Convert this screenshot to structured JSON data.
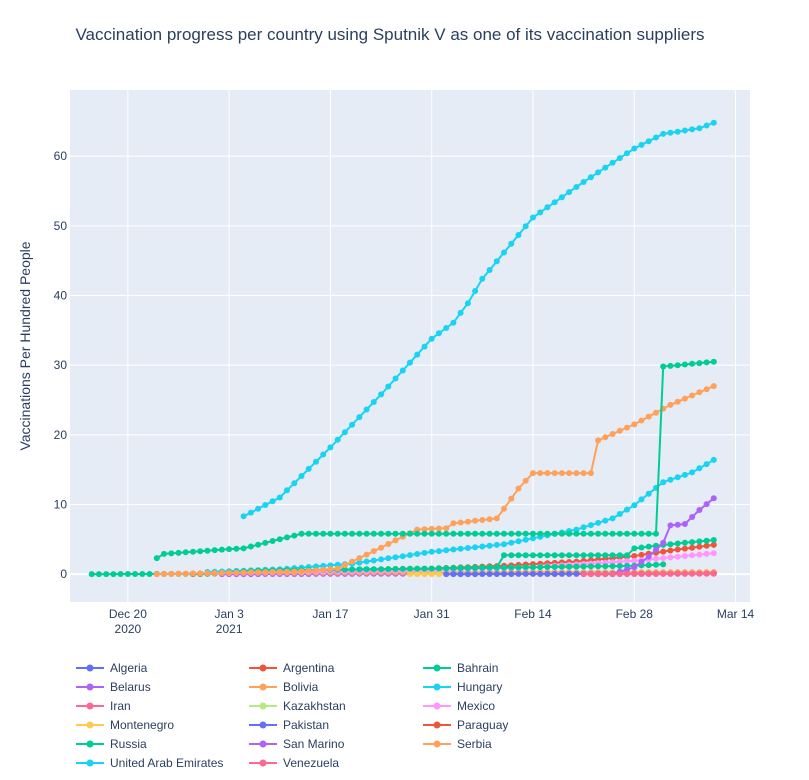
{
  "chart_data": {
    "type": "line",
    "title": "Vaccination progress per country using Sputnik V as one of its vaccination suppliers",
    "xlabel": "",
    "ylabel": "Vaccinations Per Hundred People",
    "x_axis": {
      "type": "date",
      "range": [
        "2020-12-12",
        "2021-03-16"
      ],
      "ticks": [
        {
          "date": "2020-12-20",
          "label": "Dec 20",
          "sublabel": "2020"
        },
        {
          "date": "2021-01-03",
          "label": "Jan 3",
          "sublabel": "2021"
        },
        {
          "date": "2021-01-17",
          "label": "Jan 17",
          "sublabel": ""
        },
        {
          "date": "2021-01-31",
          "label": "Jan 31",
          "sublabel": ""
        },
        {
          "date": "2021-02-14",
          "label": "Feb 14",
          "sublabel": ""
        },
        {
          "date": "2021-02-28",
          "label": "Feb 28",
          "sublabel": ""
        },
        {
          "date": "2021-03-14",
          "label": "Mar 14",
          "sublabel": ""
        }
      ]
    },
    "y_axis": {
      "range": [
        -4,
        69.5
      ],
      "ticks": [
        0,
        10,
        20,
        30,
        40,
        50,
        60
      ]
    },
    "grid": true,
    "legend_position": "bottom",
    "plot_background": "#e5ecf6",
    "series": [
      {
        "name": "Algeria",
        "color": "#636efa",
        "start": "2021-02-01",
        "end": "2021-02-16",
        "step": 1,
        "points": [
          [
            "2021-02-01",
            0.05
          ],
          [
            "2021-02-16",
            0.1
          ]
        ]
      },
      {
        "name": "Argentina",
        "color": "#EF553B",
        "start": "2020-12-29",
        "end": "2021-03-11",
        "step": 1,
        "points": [
          [
            "2020-12-29",
            0.0
          ],
          [
            "2021-01-10",
            0.3
          ],
          [
            "2021-01-31",
            0.8
          ],
          [
            "2021-02-10",
            1.2
          ],
          [
            "2021-02-20",
            1.8
          ],
          [
            "2021-02-28",
            2.6
          ],
          [
            "2021-03-05",
            3.4
          ],
          [
            "2021-03-11",
            4.2
          ]
        ]
      },
      {
        "name": "Bahrain",
        "color": "#00cc96",
        "start": "2021-01-07",
        "end": "2021-03-11",
        "step": 1,
        "points": [
          [
            "2021-01-07",
            0.5
          ],
          [
            "2021-01-31",
            0.8
          ],
          [
            "2021-02-09",
            1.0
          ],
          [
            "2021-02-10",
            2.7
          ],
          [
            "2021-02-27",
            2.7
          ],
          [
            "2021-02-28",
            3.7
          ],
          [
            "2021-03-04",
            4.2
          ],
          [
            "2021-03-11",
            4.9
          ]
        ]
      },
      {
        "name": "Belarus",
        "color": "#ab63fa",
        "start": "2021-01-02",
        "end": "2021-02-16",
        "step": 1,
        "points": [
          [
            "2021-01-02",
            0.0
          ],
          [
            "2021-02-16",
            0.1
          ]
        ]
      },
      {
        "name": "Bolivia",
        "color": "#FFA15A",
        "start": "2021-01-05",
        "end": "2021-03-11",
        "step": 1,
        "points": [
          [
            "2021-01-05",
            0.2
          ],
          [
            "2021-03-11",
            0.3
          ]
        ]
      },
      {
        "name": "Hungary",
        "color": "#19d3f3",
        "start": "2020-12-31",
        "end": "2021-03-11",
        "step": 1,
        "points": [
          [
            "2020-12-31",
            0.3
          ],
          [
            "2021-01-10",
            0.7
          ],
          [
            "2021-01-20",
            1.5
          ],
          [
            "2021-01-31",
            3.2
          ],
          [
            "2021-02-10",
            4.3
          ],
          [
            "2021-02-20",
            6.4
          ],
          [
            "2021-02-25",
            8.0
          ],
          [
            "2021-02-28",
            9.9
          ],
          [
            "2021-03-04",
            13.2
          ],
          [
            "2021-03-08",
            14.6
          ],
          [
            "2021-03-11",
            16.4
          ]
        ]
      },
      {
        "name": "Iran",
        "color": "#FF6692",
        "start": "2021-02-15",
        "end": "2021-03-11",
        "step": 1,
        "points": [
          [
            "2021-02-15",
            0.0
          ],
          [
            "2021-03-11",
            0.1
          ]
        ]
      },
      {
        "name": "Kazakhstan",
        "color": "#B6E880",
        "start": "2021-02-01",
        "end": "2021-03-11",
        "step": 1,
        "points": [
          [
            "2021-02-01",
            0.0
          ],
          [
            "2021-03-11",
            0.1
          ]
        ]
      },
      {
        "name": "Mexico",
        "color": "#FF97FF",
        "start": "2020-12-24",
        "end": "2021-03-11",
        "step": 1,
        "points": [
          [
            "2020-12-24",
            0.0
          ],
          [
            "2021-01-17",
            0.4
          ],
          [
            "2021-01-31",
            0.6
          ],
          [
            "2021-02-14",
            1.0
          ],
          [
            "2021-02-28",
            1.9
          ],
          [
            "2021-03-11",
            3.0
          ]
        ]
      },
      {
        "name": "Montenegro",
        "color": "#FECB52",
        "start": "2021-01-28",
        "end": "2021-03-11",
        "step": 1,
        "points": [
          [
            "2021-01-28",
            0.0
          ],
          [
            "2021-03-11",
            0.2
          ]
        ]
      },
      {
        "name": "Pakistan",
        "color": "#636efa",
        "start": "2021-02-02",
        "end": "2021-03-11",
        "step": 1,
        "points": [
          [
            "2021-02-02",
            0.0
          ],
          [
            "2021-03-11",
            0.1
          ]
        ]
      },
      {
        "name": "Paraguay",
        "color": "#EF553B",
        "start": "2021-02-22",
        "end": "2021-03-11",
        "step": 1,
        "points": [
          [
            "2021-02-22",
            0.0
          ],
          [
            "2021-03-11",
            0.1
          ]
        ]
      },
      {
        "name": "Russia",
        "color": "#00cc96",
        "start": "2020-12-15",
        "end": "2021-03-04",
        "step": 1,
        "points": [
          [
            "2020-12-15",
            0.0
          ],
          [
            "2020-12-31",
            0.05
          ],
          [
            "2021-01-07",
            0.5
          ],
          [
            "2021-01-31",
            0.8
          ],
          [
            "2021-02-28",
            1.2
          ],
          [
            "2021-03-04",
            1.4
          ]
        ]
      },
      {
        "name": "San Marino",
        "color": "#ab63fa",
        "start": "2021-02-25",
        "end": "2021-03-11",
        "step": 1,
        "points": [
          [
            "2021-02-25",
            0.0
          ],
          [
            "2021-02-28",
            1.0
          ],
          [
            "2021-03-02",
            2.5
          ],
          [
            "2021-03-04",
            4.5
          ],
          [
            "2021-03-05",
            7.0
          ],
          [
            "2021-03-07",
            7.2
          ],
          [
            "2021-03-09",
            9.2
          ],
          [
            "2021-03-11",
            10.9
          ]
        ]
      },
      {
        "name": "Serbia",
        "color": "#FFA15A",
        "start": "2020-12-24",
        "end": "2021-03-11",
        "step": 1,
        "points": [
          [
            "2020-12-24",
            0.0
          ],
          [
            "2021-01-13",
            0.4
          ],
          [
            "2021-01-18",
            0.8
          ],
          [
            "2021-01-24",
            3.8
          ],
          [
            "2021-01-29",
            6.4
          ],
          [
            "2021-02-02",
            6.6
          ],
          [
            "2021-02-03",
            7.3
          ],
          [
            "2021-02-09",
            8.0
          ],
          [
            "2021-02-10",
            9.4
          ],
          [
            "2021-02-12",
            12.3
          ],
          [
            "2021-02-14",
            14.5
          ],
          [
            "2021-02-22",
            14.5
          ],
          [
            "2021-02-23",
            19.2
          ],
          [
            "2021-02-28",
            21.5
          ],
          [
            "2021-03-05",
            24.3
          ],
          [
            "2021-03-11",
            27.0
          ]
        ]
      },
      {
        "name": "United Arab Emirates",
        "color": "#19d3f3",
        "start": "2021-01-05",
        "end": "2021-03-11",
        "step": 1,
        "points": [
          [
            "2021-01-05",
            8.3
          ],
          [
            "2021-01-10",
            11.0
          ],
          [
            "2021-01-17",
            18.2
          ],
          [
            "2021-01-24",
            25.8
          ],
          [
            "2021-01-31",
            33.8
          ],
          [
            "2021-02-03",
            36.1
          ],
          [
            "2021-02-05",
            38.9
          ],
          [
            "2021-02-07",
            42.4
          ],
          [
            "2021-02-14",
            51.2
          ],
          [
            "2021-02-21",
            56.3
          ],
          [
            "2021-02-28",
            61.1
          ],
          [
            "2021-03-04",
            63.2
          ],
          [
            "2021-03-09",
            64.0
          ],
          [
            "2021-03-11",
            64.8
          ]
        ]
      },
      {
        "name": "Venezuela",
        "color": "#FF6692",
        "start": "2021-02-21",
        "end": "2021-03-11",
        "step": 1,
        "points": [
          [
            "2021-02-21",
            0.0
          ],
          [
            "2021-03-11",
            0.05
          ]
        ]
      },
      {
        "name": "Russia (upper)",
        "legend": false,
        "color": "#00cc96",
        "start": "2020-12-24",
        "end": "2021-03-11",
        "step": 1,
        "points": [
          [
            "2020-12-24",
            2.3
          ],
          [
            "2020-12-25",
            2.9
          ],
          [
            "2021-01-03",
            3.6
          ],
          [
            "2021-01-05",
            3.7
          ],
          [
            "2021-01-13",
            5.8
          ],
          [
            "2021-03-03",
            5.8
          ],
          [
            "2021-03-04",
            29.8
          ],
          [
            "2021-03-11",
            30.5
          ]
        ]
      }
    ]
  }
}
